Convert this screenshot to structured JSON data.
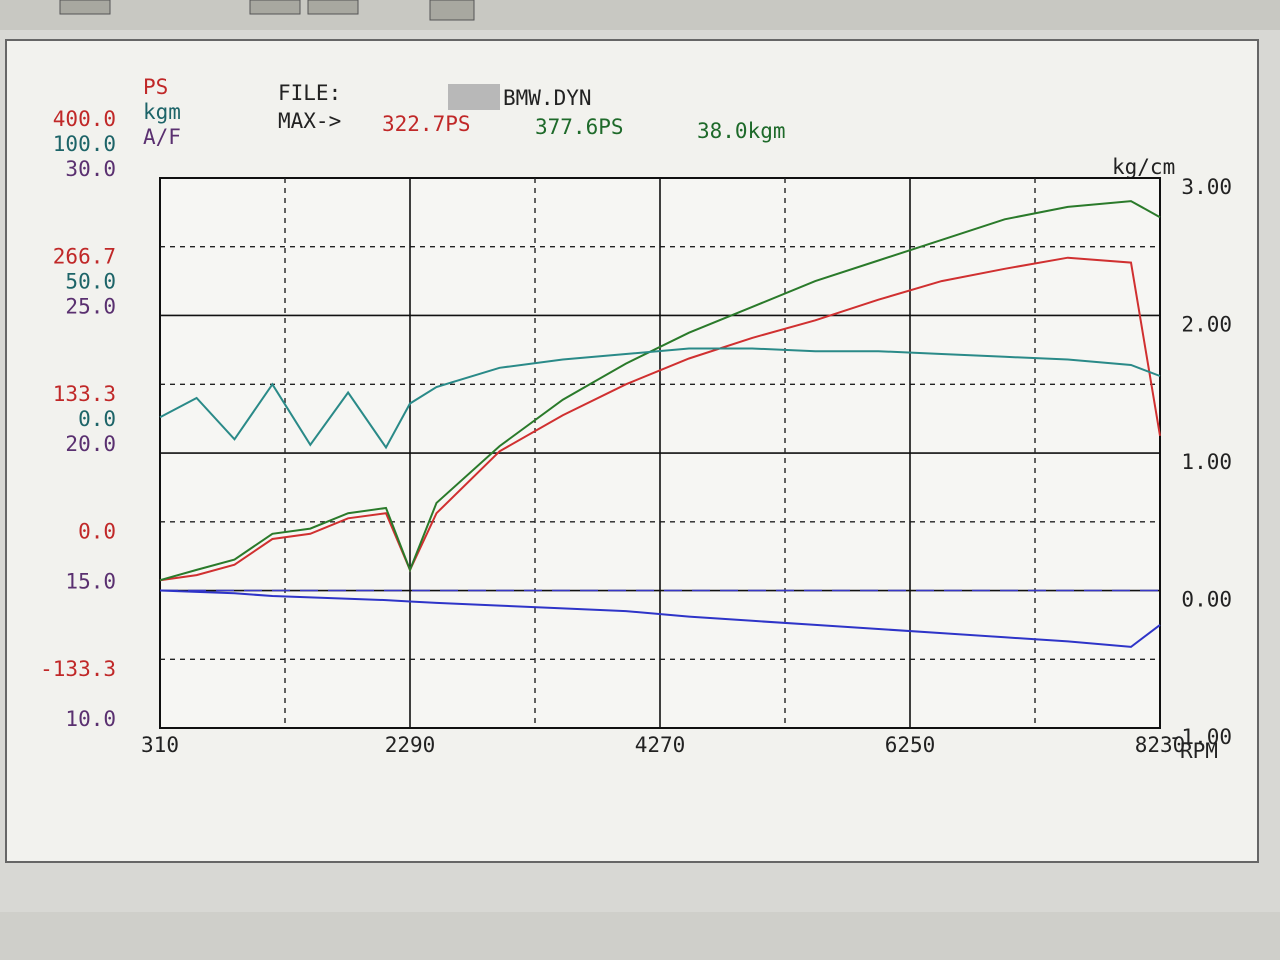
{
  "chart_data": {
    "type": "line",
    "file_label": "FILE:",
    "file_name": "BMW.DYN",
    "max_label": "MAX->",
    "max_values": [
      {
        "value": 322.7,
        "label": "322.7PS",
        "color": "#c02828"
      },
      {
        "value": 377.6,
        "label": "377.6PS",
        "color": "#1e6a2a"
      },
      {
        "value": 38.0,
        "label": "38.0kgm",
        "color": "#1e6a2a"
      }
    ],
    "y_axes": [
      {
        "name": "PS",
        "color": "#c02828",
        "ylim": [
          -133.3,
          400
        ],
        "yticks": [
          {
            "value": 400,
            "label": "400.0"
          },
          {
            "value": 266.7,
            "label": "266.7"
          },
          {
            "value": 133.3,
            "label": "133.3"
          },
          {
            "value": 0,
            "label": "0.0"
          },
          {
            "value": -133.3,
            "label": "-133.3"
          }
        ]
      },
      {
        "name": "kgm",
        "color": "#1d6468",
        "ylim": [
          -100,
          100
        ],
        "yticks": [
          {
            "value": 100,
            "label": "100.0"
          },
          {
            "value": 50,
            "label": "50.0"
          },
          {
            "value": 0,
            "label": "0.0"
          }
        ]
      },
      {
        "name": "A/F",
        "color": "#5a3070",
        "ylim": [
          10,
          30
        ],
        "yticks": [
          {
            "value": 30,
            "label": "30.0"
          },
          {
            "value": 25,
            "label": "25.0"
          },
          {
            "value": 20,
            "label": "20.0"
          },
          {
            "value": 15,
            "label": "15.0"
          },
          {
            "value": 10,
            "label": "10.0"
          }
        ]
      }
    ],
    "y2_label": "kg/cm",
    "y2lim": [
      -1,
      3
    ],
    "y2ticks": [
      {
        "value": 3,
        "label": "3.00"
      },
      {
        "value": 2,
        "label": "2.00"
      },
      {
        "value": 1,
        "label": "1.00"
      },
      {
        "value": 0,
        "label": "0.00"
      },
      {
        "value": -1,
        "label": "-1.00"
      }
    ],
    "zero_line_color": "#3838c8",
    "xlabel": "RPM",
    "xlim": [
      310,
      8230
    ],
    "xticks": [
      310,
      2290,
      4270,
      6250,
      8230
    ],
    "grid": true,
    "x": [
      310,
      600,
      900,
      1200,
      1500,
      1800,
      2100,
      2290,
      2500,
      3000,
      3500,
      4000,
      4500,
      5000,
      5500,
      6000,
      6500,
      7000,
      7500,
      8000,
      8230
    ],
    "series": [
      {
        "axis": "PS",
        "color": "#d03030",
        "values": [
          10,
          15,
          25,
          50,
          55,
          70,
          75,
          20,
          75,
          135,
          170,
          200,
          225,
          245,
          262,
          282,
          300,
          312,
          322.7,
          318,
          150
        ]
      },
      {
        "axis": "PS",
        "color": "#2a7a2a",
        "values": [
          10,
          20,
          30,
          55,
          60,
          75,
          80,
          20,
          85,
          140,
          185,
          220,
          250,
          275,
          300,
          320,
          340,
          360,
          372,
          377.6,
          362
        ]
      },
      {
        "axis": "kgm",
        "color": "#2a8a88",
        "values": [
          13,
          20,
          5,
          25,
          3,
          22,
          2,
          18,
          24,
          31,
          34,
          36,
          38,
          38,
          37,
          37,
          36,
          35,
          34,
          32,
          28
        ]
      },
      {
        "axis": "y2",
        "color": "#2e34c8",
        "values": [
          0,
          -0.01,
          -0.02,
          -0.04,
          -0.05,
          -0.06,
          -0.07,
          -0.08,
          -0.09,
          -0.11,
          -0.13,
          -0.15,
          -0.19,
          -0.22,
          -0.25,
          -0.28,
          -0.31,
          -0.34,
          -0.37,
          -0.41,
          -0.25
        ]
      }
    ]
  }
}
